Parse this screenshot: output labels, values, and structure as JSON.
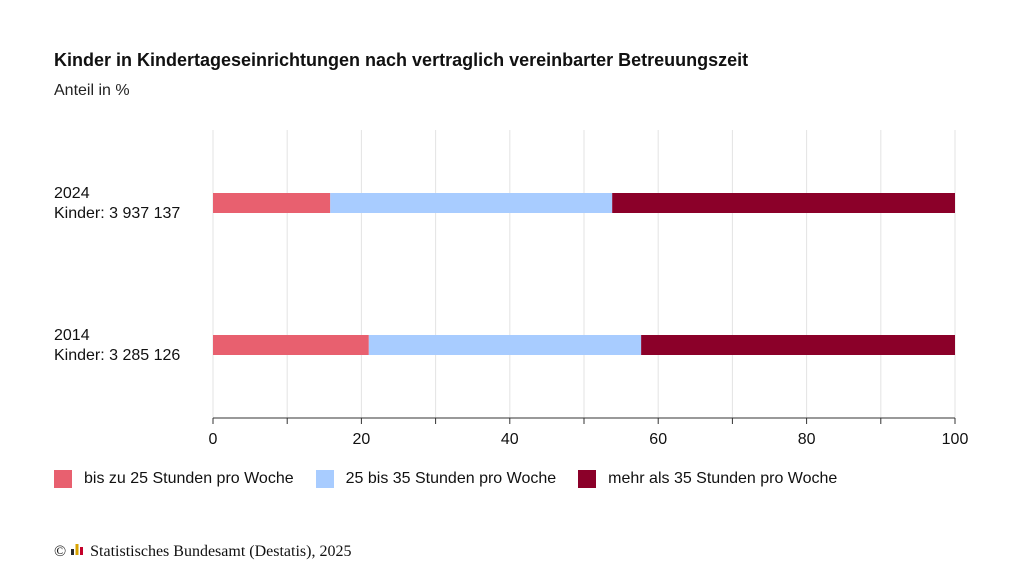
{
  "title": "Kinder in Kindertageseinrichtungen nach vertraglich vereinbarter Betreuungszeit",
  "subtitle": "Anteil in %",
  "footer": {
    "copyright_symbol": "©",
    "source": "Statistisches Bundesamt (Destatis), 2025"
  },
  "colors": {
    "series1": "#e8606f",
    "series2": "#a8ccff",
    "series3": "#8b0029",
    "grid": "#e3e3e3",
    "axis": "#333333"
  },
  "chart_data": {
    "type": "bar",
    "orientation": "horizontal",
    "stacked": true,
    "categories": [
      {
        "line1": "2024",
        "line2": "Kinder: 3 937 137"
      },
      {
        "line1": "2014",
        "line2": "Kinder: 3 285 126"
      }
    ],
    "series": [
      {
        "name": "bis zu 25 Stunden pro Woche",
        "values": [
          15.8,
          21.0
        ]
      },
      {
        "name": "25 bis 35 Stunden pro Woche",
        "values": [
          38.0,
          36.7
        ]
      },
      {
        "name": "mehr als 35 Stunden pro Woche",
        "values": [
          46.2,
          42.3
        ]
      }
    ],
    "xlim": [
      0,
      100
    ],
    "xticks": [
      "0",
      "20",
      "40",
      "60",
      "80",
      "100"
    ],
    "grid": true,
    "legend_position": "bottom"
  }
}
